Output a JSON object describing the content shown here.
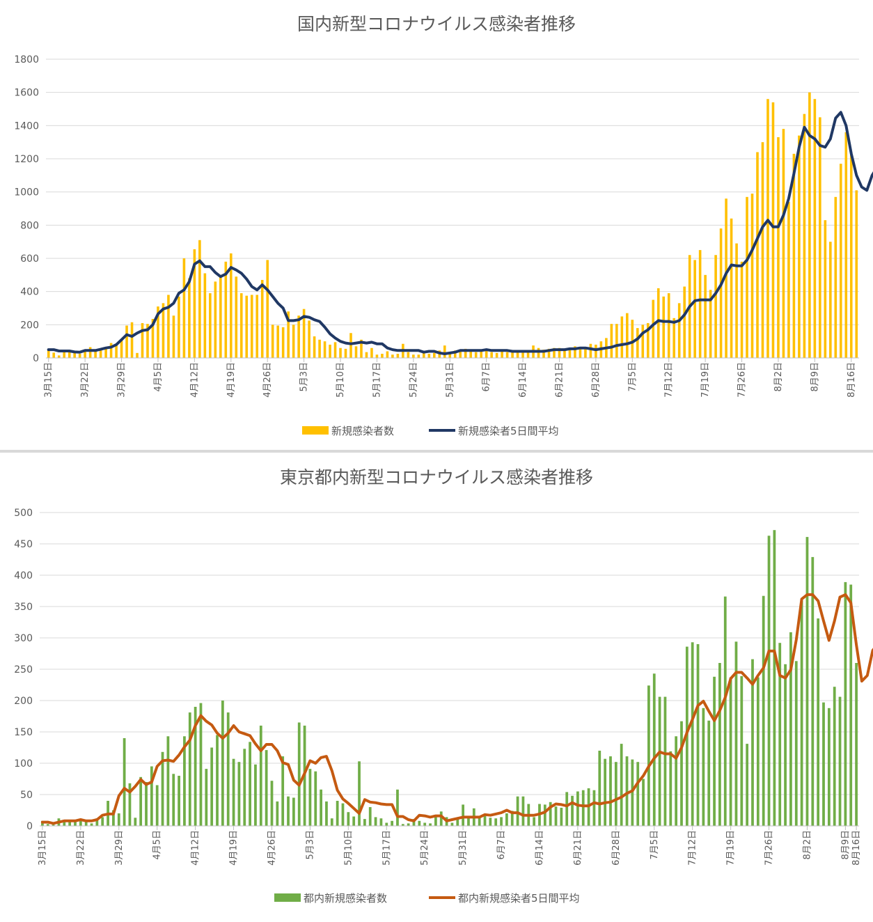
{
  "chart_data": [
    {
      "type": "bar",
      "title": "国内新型コロナウイルス感染者推移",
      "ylim": [
        0,
        1800
      ],
      "yticks": [
        "0",
        "200",
        "400",
        "600",
        "800",
        "1000",
        "1200",
        "1400",
        "1600",
        "1800"
      ],
      "xtick_labels": [
        "3月15日",
        "3月22日",
        "3月29日",
        "4月5日",
        "4月12日",
        "4月19日",
        "4月26日",
        "5月3日",
        "5月10日",
        "5月17日",
        "5月24日",
        "5月31日",
        "6月7日",
        "6月14日",
        "6月21日",
        "6月28日",
        "7月5日",
        "7月12日",
        "7月19日",
        "7月26日",
        "8月2日",
        "8月9日",
        "8月16日"
      ],
      "grid": true,
      "legend_position": "bottom",
      "colors": {
        "bar": "#ffc000",
        "line": "#203864"
      },
      "series": [
        {
          "name": "新規感染者数",
          "kind": "bar",
          "values": [
            55,
            32,
            15,
            35,
            38,
            30,
            25,
            40,
            65,
            45,
            45,
            65,
            90,
            75,
            110,
            195,
            215,
            30,
            210,
            205,
            235,
            310,
            330,
            380,
            255,
            370,
            600,
            480,
            655,
            710,
            510,
            390,
            460,
            500,
            580,
            630,
            490,
            390,
            375,
            380,
            380,
            470,
            590,
            200,
            195,
            185,
            280,
            200,
            255,
            295,
            225,
            130,
            110,
            100,
            80,
            95,
            60,
            55,
            150,
            70,
            110,
            35,
            60,
            20,
            25,
            40,
            20,
            25,
            85,
            35,
            20,
            20,
            40,
            25,
            30,
            45,
            75,
            25,
            45,
            40,
            55,
            45,
            35,
            40,
            45,
            35,
            30,
            40,
            35,
            35,
            40,
            40,
            45,
            75,
            60,
            50,
            55,
            60,
            60,
            45,
            50,
            70,
            55,
            60,
            85,
            80,
            100,
            120,
            205,
            205,
            250,
            270,
            230,
            180,
            200,
            210,
            350,
            420,
            370,
            390,
            240,
            330,
            430,
            620,
            590,
            650,
            500,
            410,
            620,
            780,
            960,
            840,
            690,
            580,
            970,
            990,
            1240,
            1300,
            1560,
            1540,
            1330,
            1380,
            940,
            1230,
            1340,
            1470,
            1600,
            1560,
            1450,
            830,
            700,
            970,
            1170,
            1360,
            1230,
            1010
          ]
        },
        {
          "name": "新規感染者5日間平均",
          "kind": "line",
          "values": [
            50,
            50,
            42,
            42,
            42,
            36,
            35,
            45,
            45,
            45,
            52,
            60,
            65,
            80,
            110,
            140,
            130,
            150,
            165,
            170,
            200,
            265,
            295,
            305,
            330,
            390,
            410,
            460,
            565,
            585,
            550,
            550,
            515,
            490,
            505,
            545,
            530,
            510,
            475,
            430,
            410,
            440,
            410,
            370,
            330,
            300,
            225,
            225,
            230,
            250,
            245,
            230,
            220,
            185,
            145,
            120,
            100,
            90,
            85,
            90,
            95,
            90,
            95,
            85,
            85,
            60,
            50,
            45,
            45,
            45,
            45,
            45,
            35,
            40,
            40,
            30,
            25,
            30,
            35,
            45,
            45,
            45,
            45,
            45,
            50,
            45,
            45,
            45,
            45,
            40,
            40,
            40,
            40,
            40,
            40,
            40,
            45,
            50,
            50,
            50,
            55,
            55,
            60,
            60,
            55,
            50,
            55,
            60,
            65,
            75,
            80,
            85,
            95,
            115,
            150,
            170,
            200,
            225,
            220,
            220,
            215,
            225,
            260,
            310,
            345,
            350,
            350,
            350,
            390,
            440,
            510,
            560,
            555,
            555,
            590,
            650,
            720,
            790,
            830,
            790,
            790,
            860,
            960,
            1110,
            1270,
            1390,
            1340,
            1320,
            1280,
            1270,
            1320,
            1445,
            1480,
            1400,
            1230,
            1100,
            1030,
            1010,
            1100,
            1150
          ]
        }
      ]
    },
    {
      "type": "bar",
      "title": "東京都内新型コロナウイルス感染者推移",
      "ylim": [
        0,
        500
      ],
      "yticks": [
        "0",
        "50",
        "100",
        "150",
        "200",
        "250",
        "300",
        "350",
        "400",
        "450",
        "500"
      ],
      "xtick_labels": [
        "3月15日",
        "3月22日",
        "3月29日",
        "4月5日",
        "4月12日",
        "4月19日",
        "4月26日",
        "5月3日",
        "5月10日",
        "5月17日",
        "5月24日",
        "5月31日",
        "6月7日",
        "6月14日",
        "6月21日",
        "6月28日",
        "7月5日",
        "7月12日",
        "7月19日",
        "7月26日",
        "8月2日",
        "8月9日",
        "8月16日"
      ],
      "grid": true,
      "legend_position": "bottom",
      "colors": {
        "bar": "#70ad47",
        "line": "#c55a11"
      },
      "series": [
        {
          "name": "都内新規感染者数",
          "kind": "bar",
          "values": [
            8,
            3,
            2,
            12,
            10,
            8,
            9,
            10,
            8,
            4,
            12,
            14,
            40,
            25,
            20,
            140,
            68,
            13,
            78,
            70,
            95,
            65,
            118,
            143,
            83,
            80,
            143,
            181,
            190,
            196,
            91,
            125,
            145,
            200,
            181,
            107,
            102,
            123,
            134,
            98,
            160,
            121,
            72,
            39,
            111,
            47,
            45,
            165,
            160,
            91,
            87,
            58,
            39,
            12,
            40,
            36,
            22,
            15,
            103,
            11,
            30,
            14,
            12,
            5,
            8,
            58,
            3,
            4,
            11,
            8,
            5,
            4,
            14,
            23,
            14,
            5,
            13,
            34,
            15,
            28,
            15,
            16,
            13,
            12,
            14,
            20,
            24,
            47,
            47,
            35,
            14,
            35,
            34,
            38,
            31,
            29,
            54,
            48,
            55,
            57,
            60,
            57,
            120,
            107,
            111,
            102,
            131,
            111,
            106,
            102,
            75,
            224,
            243,
            206,
            206,
            119,
            143,
            167,
            286,
            293,
            290,
            188,
            168,
            238,
            260,
            366,
            237,
            294,
            239,
            131,
            266,
            237,
            367,
            463,
            472,
            292,
            258,
            309,
            263,
            360,
            461,
            429,
            331,
            197,
            188,
            222,
            206,
            389,
            385,
            260
          ]
        },
        {
          "name": "都内新規感染者5日間平均",
          "kind": "line",
          "values": [
            6,
            6,
            4,
            6,
            8,
            8,
            8,
            10,
            8,
            8,
            10,
            17,
            19,
            19,
            48,
            60,
            54,
            63,
            74,
            66,
            70,
            95,
            104,
            105,
            103,
            113,
            126,
            137,
            160,
            176,
            167,
            161,
            148,
            140,
            148,
            160,
            150,
            147,
            144,
            131,
            120,
            130,
            130,
            120,
            101,
            98,
            73,
            65,
            84,
            104,
            100,
            109,
            111,
            88,
            57,
            43,
            36,
            28,
            20,
            42,
            38,
            37,
            35,
            34,
            34,
            15,
            15,
            10,
            8,
            17,
            16,
            14,
            16,
            16,
            8,
            10,
            12,
            14,
            14,
            14,
            14,
            18,
            17,
            19,
            21,
            25,
            21,
            21,
            17,
            17,
            17,
            19,
            22,
            30,
            35,
            34,
            32,
            37,
            33,
            32,
            32,
            37,
            35,
            37,
            38,
            42,
            46,
            52,
            56,
            69,
            80,
            95,
            108,
            118,
            115,
            115,
            108,
            125,
            149,
            170,
            192,
            199,
            183,
            168,
            184,
            205,
            235,
            245,
            245,
            236,
            226,
            240,
            252,
            279,
            279,
            240,
            236,
            249,
            297,
            362,
            369,
            369,
            359,
            327,
            296,
            327,
            365,
            369,
            356,
            289,
            231,
            240,
            280,
            291
          ]
        }
      ]
    }
  ]
}
